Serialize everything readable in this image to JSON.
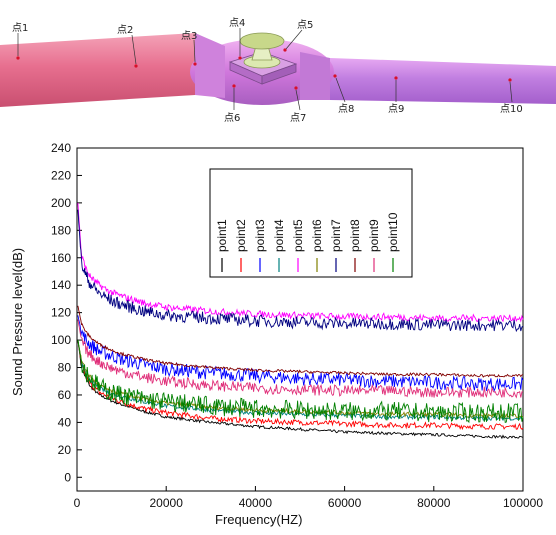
{
  "figure": {
    "pipe_labels": [
      "点1",
      "点2",
      "点3",
      "点4",
      "点5",
      "点6",
      "点7",
      "点8",
      "点9",
      "点10"
    ]
  },
  "chart_data": {
    "type": "line",
    "xlabel": "Frequency(HZ)",
    "ylabel": "Sound Pressure level(dB)",
    "xlim": [
      0,
      100000
    ],
    "ylim": [
      -10,
      240
    ],
    "xticks": [
      0,
      20000,
      40000,
      60000,
      80000,
      100000
    ],
    "yticks": [
      0,
      20,
      40,
      60,
      80,
      100,
      120,
      140,
      160,
      180,
      200,
      220,
      240
    ],
    "grid": false,
    "legend_position": "top-center",
    "x": [
      200,
      1000,
      2000,
      3000,
      5000,
      7500,
      10000,
      15000,
      20000,
      30000,
      40000,
      50000,
      60000,
      70000,
      80000,
      90000,
      100000
    ],
    "series": [
      {
        "name": "point1",
        "color": "#000000",
        "values": [
          100,
          80,
          72,
          66,
          60,
          56,
          53,
          48,
          44,
          40,
          37,
          35,
          33,
          32,
          31,
          30,
          29
        ]
      },
      {
        "name": "point2",
        "color": "#ff0000",
        "values": [
          100,
          82,
          74,
          68,
          62,
          58,
          55,
          50,
          47,
          43,
          41,
          40,
          39,
          38,
          38,
          37,
          37
        ]
      },
      {
        "name": "point3",
        "color": "#0000ff",
        "values": [
          118,
          106,
          100,
          97,
          92,
          89,
          86,
          82,
          79,
          76,
          74,
          72,
          71,
          70,
          69,
          68,
          68
        ]
      },
      {
        "name": "point4",
        "color": "#008080",
        "values": [
          100,
          84,
          76,
          71,
          65,
          61,
          59,
          55,
          52,
          49,
          47,
          46,
          45,
          44,
          44,
          43,
          43
        ]
      },
      {
        "name": "point5",
        "color": "#ff00ff",
        "values": [
          200,
          162,
          152,
          146,
          140,
          135,
          132,
          127,
          124,
          121,
          119,
          118,
          117,
          117,
          116,
          116,
          116
        ]
      },
      {
        "name": "point6",
        "color": "#808000",
        "values": [
          100,
          85,
          78,
          73,
          67,
          63,
          61,
          57,
          54,
          51,
          49,
          48,
          47,
          46,
          46,
          45,
          45
        ]
      },
      {
        "name": "point7",
        "color": "#000080",
        "values": [
          195,
          156,
          147,
          141,
          134,
          129,
          126,
          121,
          118,
          116,
          114,
          113,
          112,
          112,
          111,
          111,
          111
        ]
      },
      {
        "name": "point8",
        "color": "#800000",
        "values": [
          125,
          112,
          106,
          102,
          97,
          93,
          90,
          86,
          83,
          80,
          78,
          77,
          76,
          75,
          75,
          74,
          74
        ]
      },
      {
        "name": "point9",
        "color": "#e0307a",
        "values": [
          115,
          100,
          93,
          89,
          84,
          80,
          77,
          73,
          70,
          67,
          65,
          64,
          63,
          63,
          62,
          62,
          62
        ]
      },
      {
        "name": "point10",
        "color": "#008000",
        "values": [
          100,
          84,
          77,
          72,
          66,
          62,
          60,
          57,
          55,
          52,
          50,
          49,
          48,
          48,
          47,
          47,
          47
        ]
      }
    ],
    "noise_amplitude": [
      0,
      0,
      0,
      0,
      0,
      0,
      0,
      0,
      0,
      0,
      1,
      1,
      0,
      0,
      0,
      1,
      0
    ]
  }
}
